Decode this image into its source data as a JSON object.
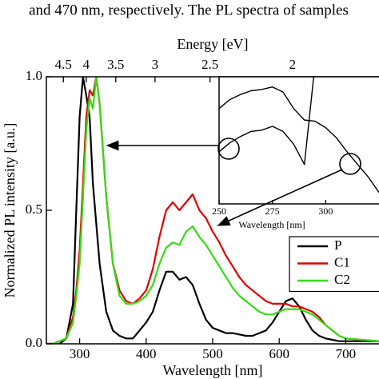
{
  "header_text": "and 470 nm, respectively. The PL spectra of samples",
  "chart_data": [
    {
      "type": "line",
      "xlabel": "Wavelength [nm]",
      "ylabel": "Normalized PL intensity [a.u.]",
      "x2label": "Energy [eV]",
      "x2scale": "reciprocal",
      "x2lim": [
        4.96,
        1.6533
      ],
      "x2ticks": [
        4.5,
        4,
        3.5,
        3,
        2.5,
        2
      ],
      "xlim": [
        250,
        750
      ],
      "xticks": [
        300,
        400,
        500,
        600,
        700
      ],
      "ylim": [
        0,
        1
      ],
      "yticks": [
        {
          "value": 0,
          "label": "0.0"
        },
        {
          "value": 0.5,
          "label": "0.5"
        },
        {
          "value": 1,
          "label": "1.0"
        }
      ],
      "legend": "lower right",
      "x": [
        250,
        260,
        270,
        280,
        290,
        295,
        300,
        305,
        310,
        315,
        320,
        325,
        330,
        340,
        350,
        360,
        370,
        380,
        390,
        400,
        410,
        420,
        430,
        440,
        450,
        460,
        470,
        480,
        490,
        500,
        510,
        520,
        530,
        540,
        550,
        560,
        570,
        580,
        590,
        600,
        610,
        620,
        630,
        640,
        650,
        660,
        670,
        680,
        690,
        700,
        750
      ],
      "series": [
        {
          "name": "P",
          "color": "#000000",
          "values": [
            0,
            0,
            0,
            0.02,
            0.15,
            0.5,
            0.85,
            1.0,
            0.93,
            0.85,
            0.6,
            0.45,
            0.3,
            0.12,
            0.05,
            0.03,
            0.02,
            0.02,
            0.05,
            0.08,
            0.12,
            0.2,
            0.27,
            0.27,
            0.24,
            0.25,
            0.22,
            0.15,
            0.09,
            0.06,
            0.05,
            0.04,
            0.04,
            0.035,
            0.03,
            0.03,
            0.04,
            0.05,
            0.08,
            0.12,
            0.16,
            0.17,
            0.14,
            0.09,
            0.05,
            0.03,
            0.02,
            0.015,
            0.01,
            0.01,
            0.01
          ]
        },
        {
          "name": "C1",
          "color": "#e00000",
          "values": [
            0,
            0,
            0.01,
            0.02,
            0.1,
            0.2,
            0.35,
            0.6,
            0.85,
            0.95,
            0.93,
            1.0,
            0.9,
            0.55,
            0.3,
            0.2,
            0.16,
            0.15,
            0.17,
            0.2,
            0.28,
            0.4,
            0.5,
            0.53,
            0.5,
            0.53,
            0.56,
            0.5,
            0.47,
            0.42,
            0.38,
            0.33,
            0.29,
            0.25,
            0.22,
            0.2,
            0.18,
            0.16,
            0.15,
            0.15,
            0.15,
            0.14,
            0.14,
            0.13,
            0.12,
            0.1,
            0.07,
            0.05,
            0.03,
            0.02,
            0.01
          ]
        },
        {
          "name": "C2",
          "color": "#33dd11",
          "values": [
            0,
            0,
            0.01,
            0.02,
            0.08,
            0.18,
            0.3,
            0.55,
            0.8,
            0.92,
            0.88,
            1.0,
            0.9,
            0.55,
            0.3,
            0.18,
            0.15,
            0.15,
            0.16,
            0.18,
            0.22,
            0.3,
            0.36,
            0.38,
            0.37,
            0.42,
            0.44,
            0.4,
            0.37,
            0.33,
            0.29,
            0.25,
            0.21,
            0.18,
            0.16,
            0.14,
            0.12,
            0.11,
            0.11,
            0.12,
            0.13,
            0.13,
            0.13,
            0.12,
            0.11,
            0.09,
            0.07,
            0.05,
            0.03,
            0.02,
            0.01
          ]
        }
      ]
    },
    {
      "type": "line",
      "xlabel": "Wavelength [nm]",
      "xlim": [
        250,
        325
      ],
      "xticks": [
        250,
        275,
        300
      ],
      "ylim": [
        0,
        1
      ],
      "x": [
        250,
        255,
        260,
        265,
        270,
        275,
        280,
        285,
        290,
        295,
        300,
        305,
        310,
        315,
        320,
        325
      ],
      "series": [
        {
          "color": "#000000",
          "values": [
            0.75,
            0.82,
            0.86,
            0.89,
            0.9,
            0.92,
            0.88,
            0.75,
            0.66,
            0.65,
            0.6,
            0.52,
            0.41,
            0.31,
            0.21,
            0.09
          ]
        },
        {
          "color": "#000000",
          "values": [
            0.41,
            0.48,
            0.53,
            0.57,
            0.58,
            0.61,
            0.57,
            0.47,
            0.31,
            1.1,
            null,
            null,
            null,
            null,
            null,
            null
          ]
        }
      ]
    }
  ]
}
